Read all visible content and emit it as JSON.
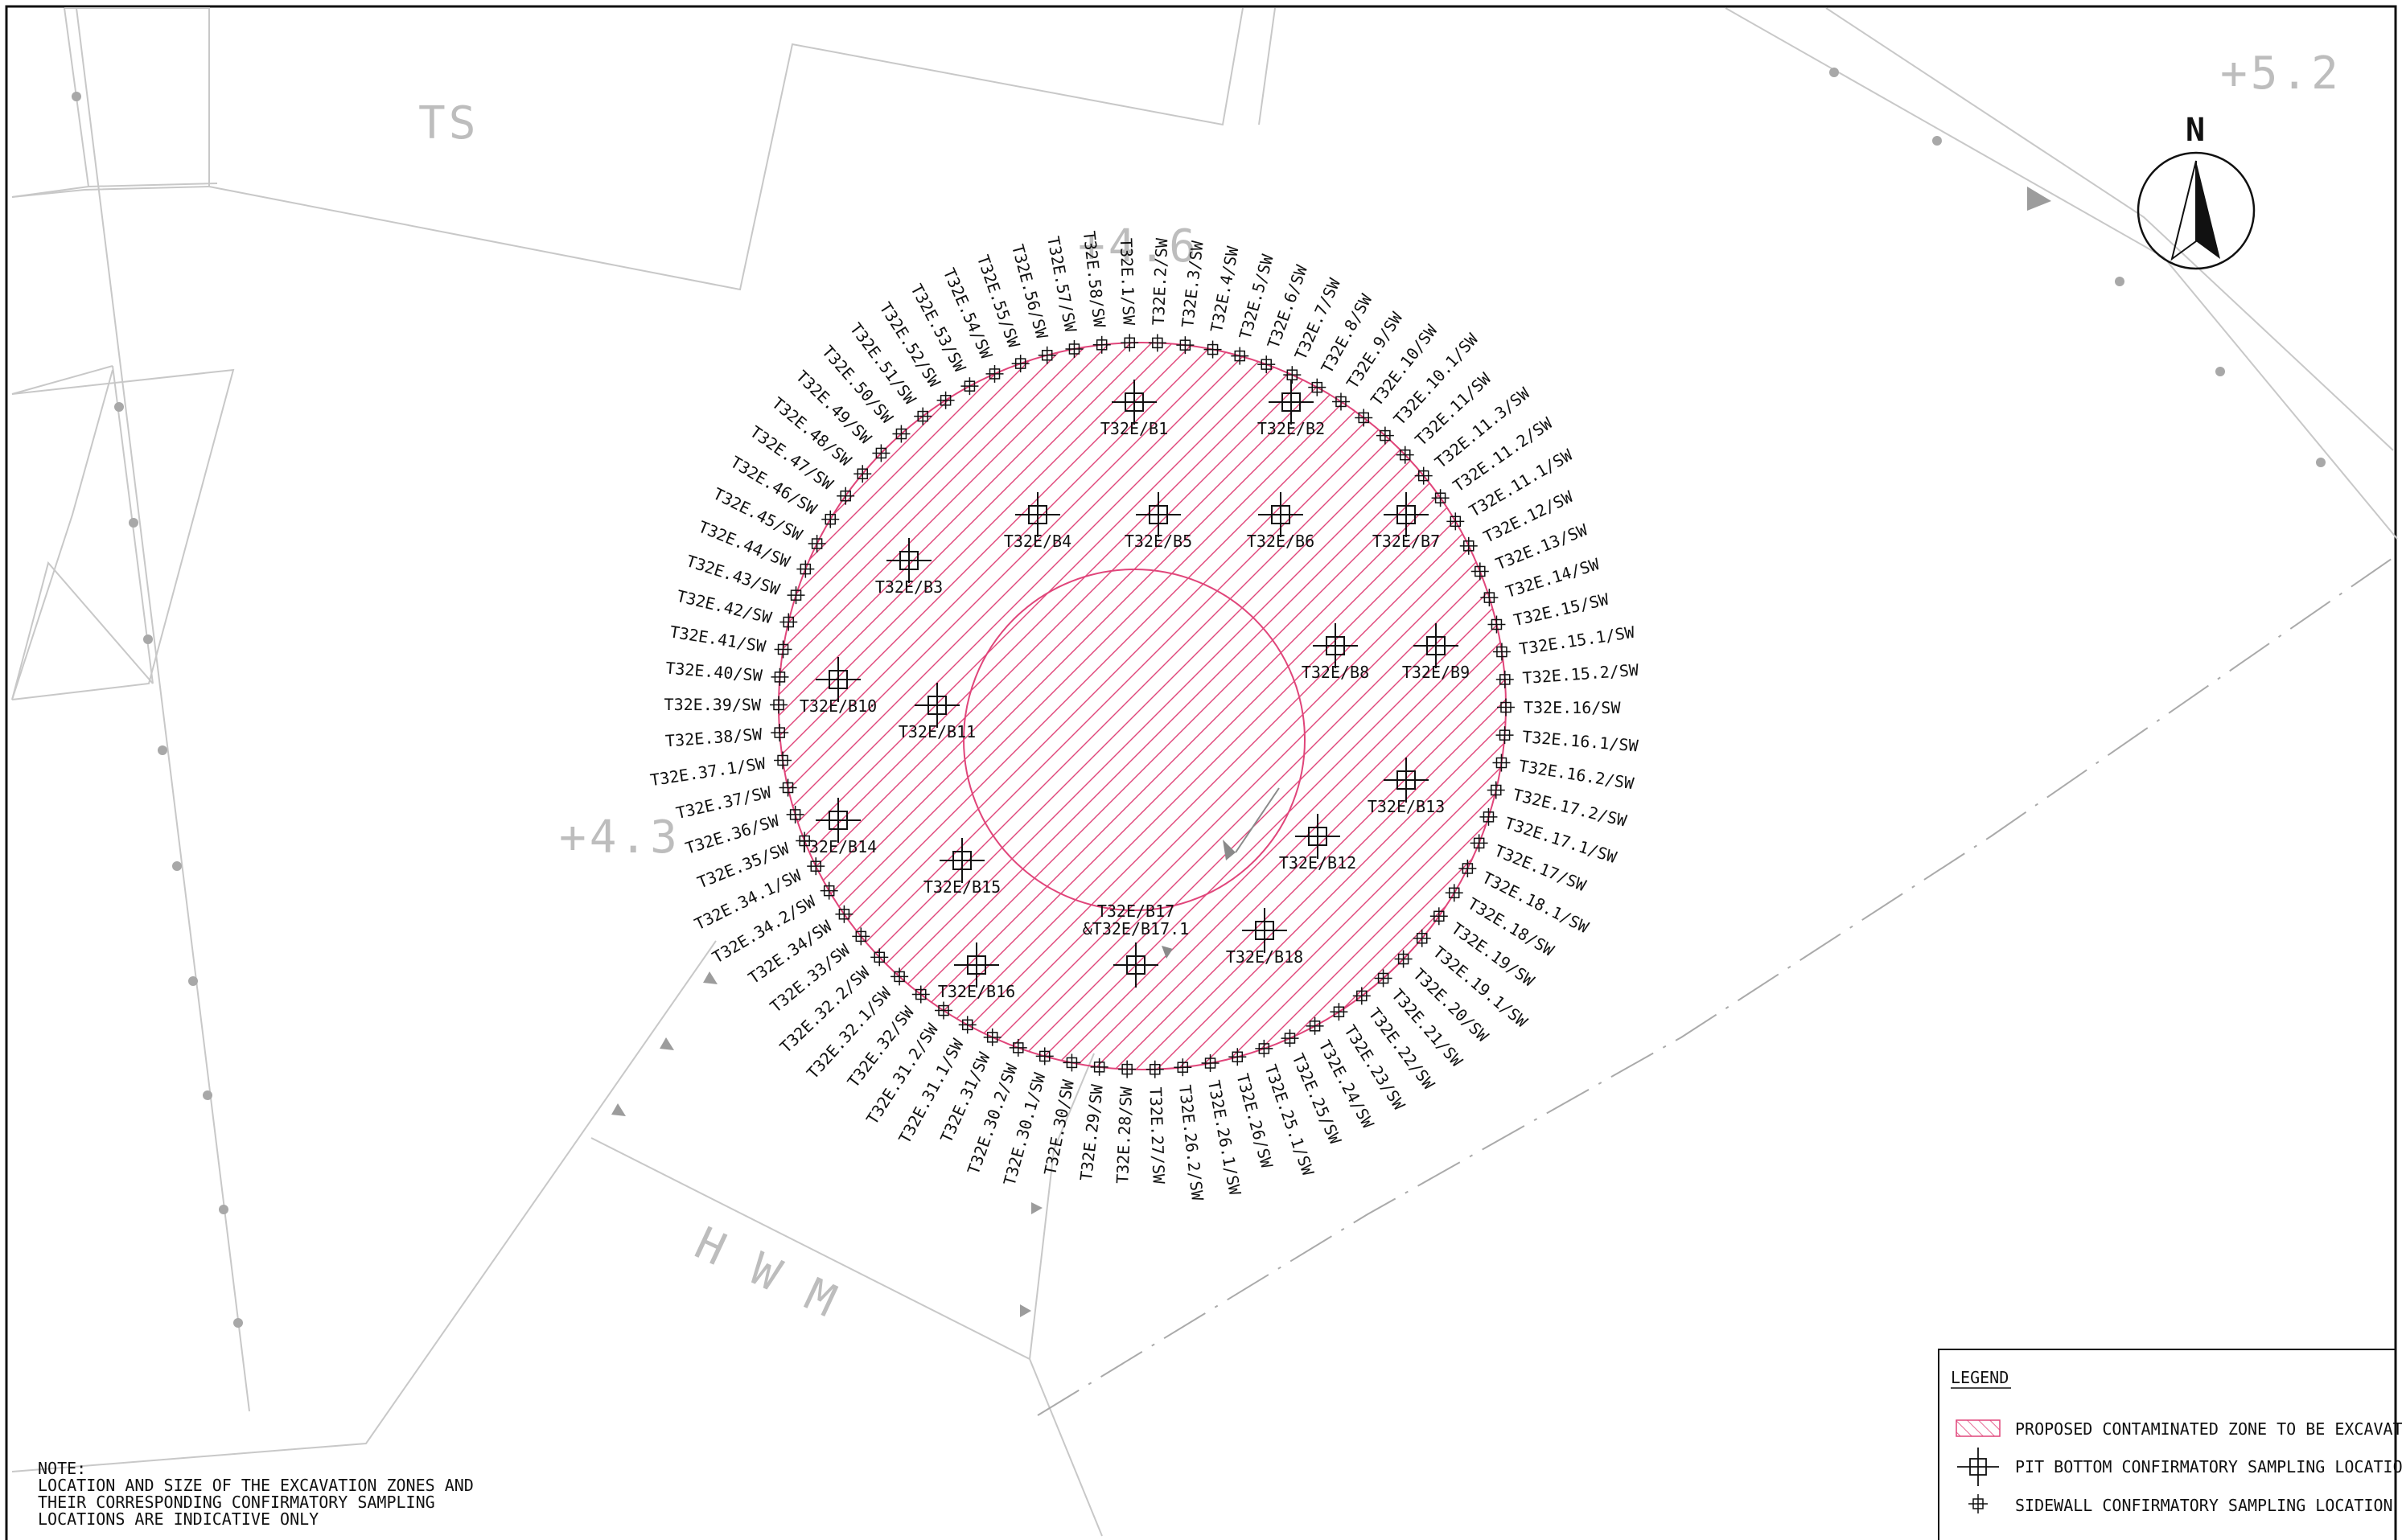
{
  "drawing": {
    "background_labels": [
      "TS",
      "+4.6",
      "+4.3",
      "+5.2",
      "H W M"
    ],
    "north_arrow_label": "N"
  },
  "sidewall_points": [
    "T32E.1/SW",
    "T32E.2/SW",
    "T32E.3/SW",
    "T32E.4/SW",
    "T32E.5/SW",
    "T32E.6/SW",
    "T32E.7/SW",
    "T32E.8/SW",
    "T32E.9/SW",
    "T32E.10/SW",
    "T32E.10.1/SW",
    "T32E.11/SW",
    "T32E.11.3/SW",
    "T32E.11.2/SW",
    "T32E.11.1/SW",
    "T32E.12/SW",
    "T32E.13/SW",
    "T32E.14/SW",
    "T32E.15/SW",
    "T32E.15.1/SW",
    "T32E.15.2/SW",
    "T32E.16/SW",
    "T32E.16.1/SW",
    "T32E.16.2/SW",
    "T32E.17.2/SW",
    "T32E.17.1/SW",
    "T32E.17/SW",
    "T32E.18.1/SW",
    "T32E.18/SW",
    "T32E.19/SW",
    "T32E.19.1/SW",
    "T32E.20/SW",
    "T32E.21/SW",
    "T32E.22/SW",
    "T32E.23/SW",
    "T32E.24/SW",
    "T32E.25/SW",
    "T32E.25.1/SW",
    "T32E.26/SW",
    "T32E.26.1/SW",
    "T32E.26.2/SW",
    "T32E.27/SW",
    "T32E.28/SW",
    "T32E.29/SW",
    "T32E.30/SW",
    "T32E.30.1/SW",
    "T32E.30.2/SW",
    "T32E.31/SW",
    "T32E.31.1/SW",
    "T32E.31.2/SW",
    "T32E.32/SW",
    "T32E.32.1/SW",
    "T32E.32.2/SW",
    "T32E.33/SW",
    "T32E.34/SW",
    "T32E.34.2/SW",
    "T32E.34.1/SW",
    "T32E.35/SW",
    "T32E.36/SW",
    "T32E.37/SW",
    "T32E.37.1/SW",
    "T32E.38/SW",
    "T32E.39/SW",
    "T32E.40/SW",
    "T32E.41/SW",
    "T32E.42/SW",
    "T32E.43/SW",
    "T32E.44/SW",
    "T32E.45/SW",
    "T32E.46/SW",
    "T32E.47/SW",
    "T32E.48/SW",
    "T32E.49/SW",
    "T32E.50/SW",
    "T32E.51/SW",
    "T32E.52/SW",
    "T32E.53/SW",
    "T32E.54/SW",
    "T32E.55/SW",
    "T32E.56/SW",
    "T32E.57/SW",
    "T32E.58/SW"
  ],
  "pit_bottom_points": [
    "T32E/B1",
    "T32E/B2",
    "T32E/B3",
    "T32E/B4",
    "T32E/B5",
    "T32E/B6",
    "T32E/B7",
    "T32E/B8",
    "T32E/B9",
    "T32E/B10",
    "T32E/B11",
    "T32E/B12",
    "T32E/B13",
    "T32E/B14",
    "T32E/B15",
    "T32E/B16",
    "T32E/B17 &T32E/B17.1",
    "T32E/B18"
  ],
  "legend": {
    "title": "LEGEND",
    "items": [
      {
        "symbol": "hatch",
        "label": "PROPOSED CONTAMINATED ZONE TO BE EXCAVATED"
      },
      {
        "symbol": "pit-bottom",
        "label": "PIT BOTTOM CONFIRMATORY SAMPLING LOCATION"
      },
      {
        "symbol": "sidewall",
        "label": "SIDEWALL CONFIRMATORY SAMPLING LOCATION"
      }
    ]
  },
  "note": {
    "title": "NOTE:",
    "lines": [
      "LOCATION AND SIZE OF THE EXCAVATION ZONES AND",
      "THEIR CORRESPONDING CONFIRMATORY SAMPLING",
      "LOCATIONS ARE INDICATIVE ONLY"
    ]
  },
  "colors": {
    "excavation_zone": "#e0457a",
    "linework": "#111111",
    "background_lines": "#c8c8c8",
    "background_text": "#bdbdbd"
  }
}
